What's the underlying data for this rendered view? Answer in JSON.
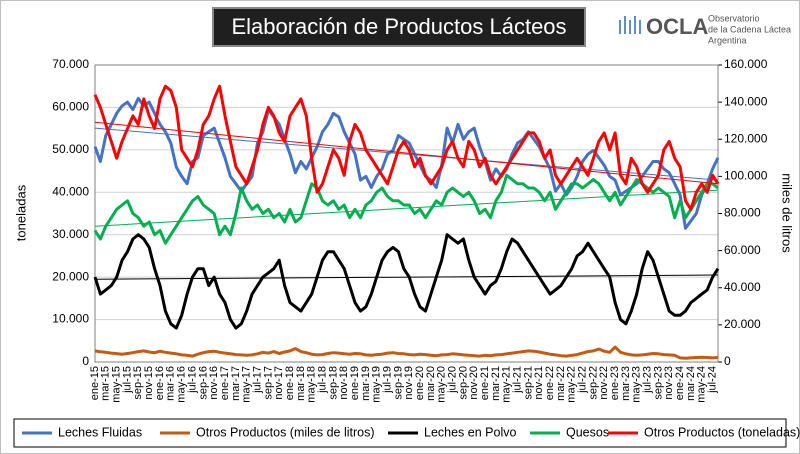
{
  "chart_data": {
    "type": "line",
    "title": "Elaboración de Productos Lácteos",
    "logo": {
      "name": "OCLA",
      "line1": "Observatorio",
      "line2": "de la Cadena Láctea",
      "line3": "Argentina"
    },
    "ylabel": "toneladas",
    "y2label": "miles de litros",
    "categories": [
      "ene-15",
      null,
      "mar-15",
      null,
      "may-15",
      null,
      "jul-15",
      null,
      "sep-15",
      null,
      "nov-15",
      null,
      "ene-16",
      null,
      "mar-16",
      null,
      "may-16",
      null,
      "jul-16",
      null,
      "sep-16",
      null,
      "nov-16",
      null,
      "ene-17",
      null,
      "mar-17",
      null,
      "may-17",
      null,
      "jul-17",
      null,
      "sep-17",
      null,
      "nov-17",
      null,
      "ene-18",
      null,
      "mar-18",
      null,
      "may-18",
      null,
      "jul-18",
      null,
      "sep-18",
      null,
      "nov-18",
      null,
      "ene-19",
      null,
      "mar-19",
      null,
      "may-19",
      null,
      "jul-19",
      null,
      "sep-19",
      null,
      "nov-19",
      null,
      "ene-20",
      null,
      "mar-20",
      null,
      "may-20",
      null,
      "jul-20",
      null,
      "sep-20",
      null,
      "nov-20",
      null,
      "ene-21",
      null,
      "mar-21",
      null,
      "may-21",
      null,
      "jul-21",
      null,
      "sep-21",
      null,
      "nov-21",
      null,
      "ene-22",
      null,
      "mar-22",
      null,
      "may-22",
      null,
      "jul-22",
      null,
      "sep-22",
      null,
      "nov-22",
      null,
      "ene-23",
      null,
      "mar-23",
      null,
      "may-23",
      null,
      "jul-23",
      null,
      "sep-23",
      null,
      "nov-23",
      null,
      "ene-24",
      null,
      "mar-24",
      null,
      "may-24",
      null,
      "jul-24",
      null
    ],
    "ylim": [
      0,
      70000
    ],
    "yticks": [
      0,
      {
        "value": 10000,
        "label": "10.000"
      },
      {
        "value": 20000,
        "label": "20.000"
      },
      {
        "value": 30000,
        "label": "30.000"
      },
      {
        "value": 40000,
        "label": "40.000"
      },
      {
        "value": 50000,
        "label": "50.000"
      },
      {
        "value": 60000,
        "label": "60.000"
      },
      {
        "value": 70000,
        "label": "70.000"
      }
    ],
    "y2lim": [
      0,
      160000
    ],
    "y2ticks": [
      0,
      {
        "value": 20000,
        "label": "20.000"
      },
      {
        "value": 40000,
        "label": "40.000"
      },
      {
        "value": 60000,
        "label": "60.000"
      },
      {
        "value": 80000,
        "label": "80.000"
      },
      {
        "value": 100000,
        "label": "100.000"
      },
      {
        "value": 120000,
        "label": "120.000"
      },
      {
        "value": 140000,
        "label": "140.000"
      },
      {
        "value": 160000,
        "label": "160.000"
      }
    ],
    "grid": true,
    "series": [
      {
        "name": "Leches Fluidas",
        "color": "#4472c4",
        "axis": "y2",
        "trend": [
          126000,
          98000
        ],
        "values": [
          116000,
          108000,
          122000,
          128000,
          134000,
          138000,
          140000,
          136000,
          142000,
          138000,
          140000,
          134000,
          128000,
          124000,
          118000,
          105000,
          100000,
          96000,
          108000,
          110000,
          122000,
          124000,
          126000,
          118000,
          110000,
          100000,
          96000,
          92000,
          96000,
          100000,
          118000,
          124000,
          136000,
          132000,
          128000,
          120000,
          112000,
          102000,
          108000,
          104000,
          110000,
          116000,
          124000,
          128000,
          134000,
          132000,
          124000,
          118000,
          112000,
          98000,
          100000,
          94000,
          100000,
          104000,
          112000,
          114000,
          122000,
          120000,
          118000,
          112000,
          106000,
          100000,
          98000,
          94000,
          106000,
          126000,
          118000,
          128000,
          120000,
          124000,
          126000,
          116000,
          108000,
          98000,
          104000,
          100000,
          104000,
          112000,
          118000,
          120000,
          124000,
          120000,
          116000,
          110000,
          104000,
          92000,
          96000,
          90000,
          94000,
          100000,
          108000,
          112000,
          114000,
          110000,
          106000,
          100000,
          98000,
          90000,
          92000,
          94000,
          96000,
          100000,
          104000,
          108000,
          108000,
          104000,
          102000,
          96000,
          90000,
          72000,
          76000,
          80000,
          90000,
          96000,
          104000,
          110000
        ]
      },
      {
        "name": "Otros Productos (miles de litros)",
        "color": "#c55a11",
        "axis": "y2",
        "values": [
          6000,
          5500,
          5200,
          4800,
          4500,
          4200,
          4600,
          5000,
          5600,
          6000,
          5400,
          5000,
          5800,
          5200,
          4800,
          4400,
          3800,
          3600,
          3200,
          4200,
          5000,
          5600,
          5800,
          5200,
          4800,
          4400,
          4000,
          3800,
          3600,
          3800,
          4400,
          5200,
          4800,
          5600,
          4600,
          5400,
          6000,
          7200,
          5600,
          5000,
          4200,
          3800,
          4000,
          4600,
          5000,
          4800,
          4400,
          4200,
          4600,
          4400,
          3800,
          3600,
          4000,
          4200,
          4800,
          5000,
          4600,
          4400,
          4000,
          3800,
          4200,
          4000,
          3600,
          3400,
          3800,
          4000,
          4400,
          4200,
          3800,
          3600,
          3400,
          3200,
          3600,
          3400,
          3800,
          4000,
          4400,
          4800,
          5200,
          5600,
          6000,
          5800,
          5400,
          4800,
          4200,
          3800,
          3400,
          3200,
          3600,
          4000,
          4800,
          5600,
          6000,
          7000,
          5800,
          5200,
          8000,
          5200,
          4400,
          3800,
          3600,
          3800,
          4200,
          4600,
          4400,
          4000,
          3800,
          3600,
          2200,
          2000,
          2200,
          2400,
          2600,
          2400,
          2200,
          2400
        ]
      },
      {
        "name": "Leches en Polvo",
        "color": "#000000",
        "trend": [
          19500,
          20500
        ],
        "values": [
          20000,
          16000,
          17000,
          18000,
          20000,
          24000,
          26000,
          29000,
          30000,
          29000,
          27000,
          22000,
          18000,
          12000,
          9000,
          8000,
          11000,
          16000,
          20000,
          22000,
          22000,
          18000,
          20000,
          16000,
          14000,
          10000,
          8000,
          9000,
          12000,
          16000,
          18000,
          20000,
          21000,
          22000,
          24000,
          18000,
          14000,
          13000,
          12000,
          14000,
          16000,
          20000,
          24000,
          26000,
          26000,
          24000,
          22000,
          18000,
          14000,
          12000,
          13000,
          16000,
          20000,
          24000,
          26000,
          27000,
          26000,
          22000,
          20000,
          16000,
          13000,
          12000,
          16000,
          20000,
          24000,
          30000,
          29000,
          28000,
          29000,
          24000,
          20000,
          18000,
          16000,
          18000,
          19000,
          22000,
          26000,
          29000,
          28000,
          26000,
          24000,
          22000,
          20000,
          18000,
          16000,
          17000,
          18000,
          20000,
          22000,
          25000,
          26000,
          28000,
          26000,
          24000,
          22000,
          20000,
          14000,
          10000,
          9000,
          12000,
          16000,
          22000,
          26000,
          24000,
          20000,
          16000,
          12000,
          11000,
          11000,
          12000,
          14000,
          15000,
          16000,
          17000,
          20000,
          22000
        ]
      },
      {
        "name": "Quesos",
        "color": "#00b050",
        "trend": [
          32000,
          40500
        ],
        "values": [
          31000,
          29000,
          32000,
          34000,
          36000,
          37000,
          38000,
          35000,
          34000,
          32000,
          33000,
          30000,
          31000,
          28000,
          30000,
          32000,
          34000,
          36000,
          38000,
          39000,
          37000,
          36000,
          35000,
          30000,
          32000,
          30000,
          35000,
          41000,
          38000,
          36000,
          37000,
          35000,
          36000,
          34000,
          35000,
          33000,
          36000,
          33000,
          34000,
          38000,
          42000,
          41000,
          38000,
          37000,
          38000,
          36000,
          37000,
          34000,
          36000,
          34000,
          37000,
          38000,
          40000,
          41000,
          39000,
          38000,
          38000,
          37000,
          37000,
          35000,
          36000,
          34000,
          36000,
          38000,
          37000,
          40000,
          41000,
          40000,
          39000,
          40000,
          38000,
          35000,
          36000,
          34000,
          38000,
          40000,
          44000,
          43000,
          42000,
          42000,
          41000,
          41000,
          40000,
          38000,
          40000,
          36000,
          38000,
          40000,
          42000,
          42000,
          41000,
          42000,
          43000,
          42000,
          40000,
          38000,
          40000,
          37000,
          39000,
          41000,
          43000,
          42000,
          41000,
          40000,
          41000,
          40000,
          39000,
          34000,
          38000,
          34000,
          36000,
          38000,
          40000,
          42000,
          42000,
          41000
        ]
      },
      {
        "name": "Otros Productos (toneladas)",
        "color": "#ff0000",
        "trend": [
          56500,
          42000
        ],
        "values": [
          63000,
          60000,
          56000,
          52000,
          48000,
          52000,
          55000,
          58000,
          56000,
          62000,
          58000,
          55000,
          62000,
          65000,
          64000,
          60000,
          50000,
          48000,
          46000,
          50000,
          56000,
          58000,
          62000,
          65000,
          58000,
          52000,
          46000,
          44000,
          42000,
          46000,
          50000,
          56000,
          60000,
          58000,
          54000,
          52000,
          58000,
          60000,
          62000,
          58000,
          48000,
          40000,
          42000,
          46000,
          50000,
          48000,
          44000,
          52000,
          56000,
          54000,
          50000,
          48000,
          46000,
          44000,
          42000,
          46000,
          50000,
          52000,
          50000,
          46000,
          48000,
          44000,
          42000,
          44000,
          46000,
          50000,
          52000,
          48000,
          46000,
          52000,
          50000,
          46000,
          48000,
          44000,
          42000,
          44000,
          46000,
          48000,
          50000,
          52000,
          54000,
          54000,
          52000,
          48000,
          50000,
          44000,
          42000,
          44000,
          46000,
          48000,
          46000,
          44000,
          48000,
          52000,
          54000,
          50000,
          54000,
          44000,
          42000,
          48000,
          46000,
          42000,
          40000,
          42000,
          44000,
          50000,
          52000,
          48000,
          46000,
          38000,
          36000,
          40000,
          42000,
          40000,
          44000,
          42000
        ]
      }
    ]
  }
}
